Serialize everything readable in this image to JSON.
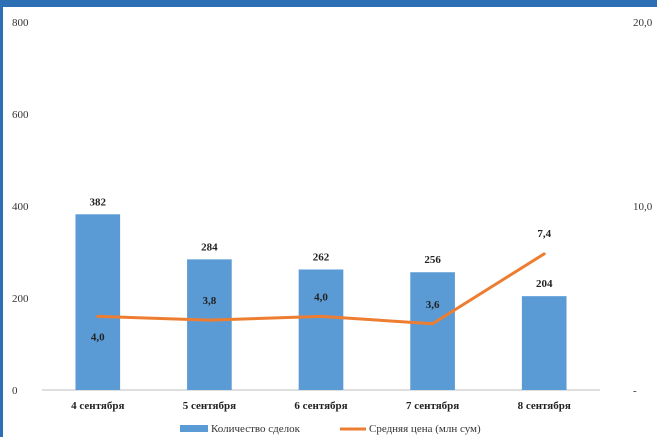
{
  "chart_data": {
    "type": "bar",
    "categories": [
      "4 сентября",
      "5 сентября",
      "6 сентября",
      "7 сентября",
      "8 сентября"
    ],
    "series": [
      {
        "name": "Количество сделок",
        "type": "bar",
        "axis": "left",
        "color": "#5b9bd5",
        "values": [
          382,
          284,
          262,
          256,
          204
        ],
        "labels": [
          "382",
          "284",
          "262",
          "256",
          "204"
        ]
      },
      {
        "name": "Средняя цена (млн сум)",
        "type": "line",
        "axis": "right",
        "color": "#ed7d31",
        "values": [
          4.0,
          3.8,
          4.0,
          3.6,
          7.4
        ],
        "labels": [
          "4,0",
          "3,8",
          "4,0",
          "3,6",
          "7,4"
        ]
      }
    ],
    "ylim": [
      0,
      800
    ],
    "yticks": [
      "0",
      "200",
      "400",
      "600",
      "800"
    ],
    "y2lim": [
      0,
      20
    ],
    "y2ticks": [
      "-",
      "10,0",
      "20,0"
    ],
    "grid": false,
    "legend_position": "bottom"
  }
}
